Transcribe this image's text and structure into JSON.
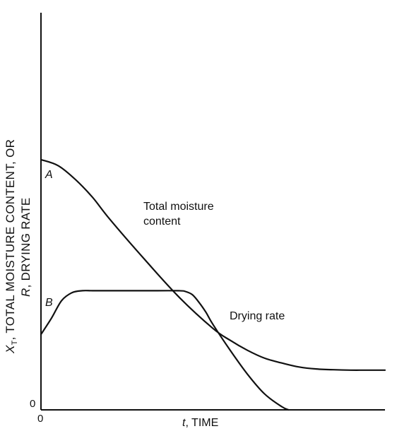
{
  "chart_data": {
    "type": "line",
    "title": "",
    "xlabel_var": "t",
    "xlabel_text": ", TIME",
    "ylabel_line1": "X_T, TOTAL MOISTURE CONTENT, OR",
    "ylabel_line1_var": "X",
    "ylabel_line1_sub": "T",
    "ylabel_line1_rest": ", TOTAL MOISTURE CONTENT, OR",
    "ylabel_line2_var": "R",
    "ylabel_line2_rest": ", DRYING RATE",
    "x_origin_label": "0",
    "y_origin_label": "0",
    "grid": false,
    "legend": "none",
    "xlim": [
      0,
      100
    ],
    "ylim": [
      0,
      100
    ],
    "series": [
      {
        "name": "Total moisture content",
        "start_label": "A",
        "x": [
          0,
          5,
          10,
          15,
          20,
          30,
          40,
          50,
          55,
          60,
          65,
          70,
          75,
          80,
          85,
          90,
          95,
          100
        ],
        "y": [
          63,
          61.5,
          58,
          53.5,
          48,
          38,
          28.5,
          20.5,
          17.5,
          15,
          13,
          11.8,
          10.8,
          10.3,
          10.1,
          10,
          10,
          10
        ]
      },
      {
        "name": "Drying rate",
        "start_label": "B",
        "x": [
          0,
          3,
          6,
          9,
          12,
          15,
          20,
          30,
          40,
          42,
          44,
          46,
          48,
          50,
          55,
          60,
          65,
          70,
          72
        ],
        "y": [
          19,
          23,
          27.5,
          29.5,
          30,
          30,
          30,
          30,
          30,
          29.8,
          29,
          27,
          24.5,
          21.5,
          15,
          9,
          4,
          0.8,
          0
        ]
      }
    ],
    "annotations": [
      "Total moisture",
      "content",
      "Drying rate"
    ]
  }
}
